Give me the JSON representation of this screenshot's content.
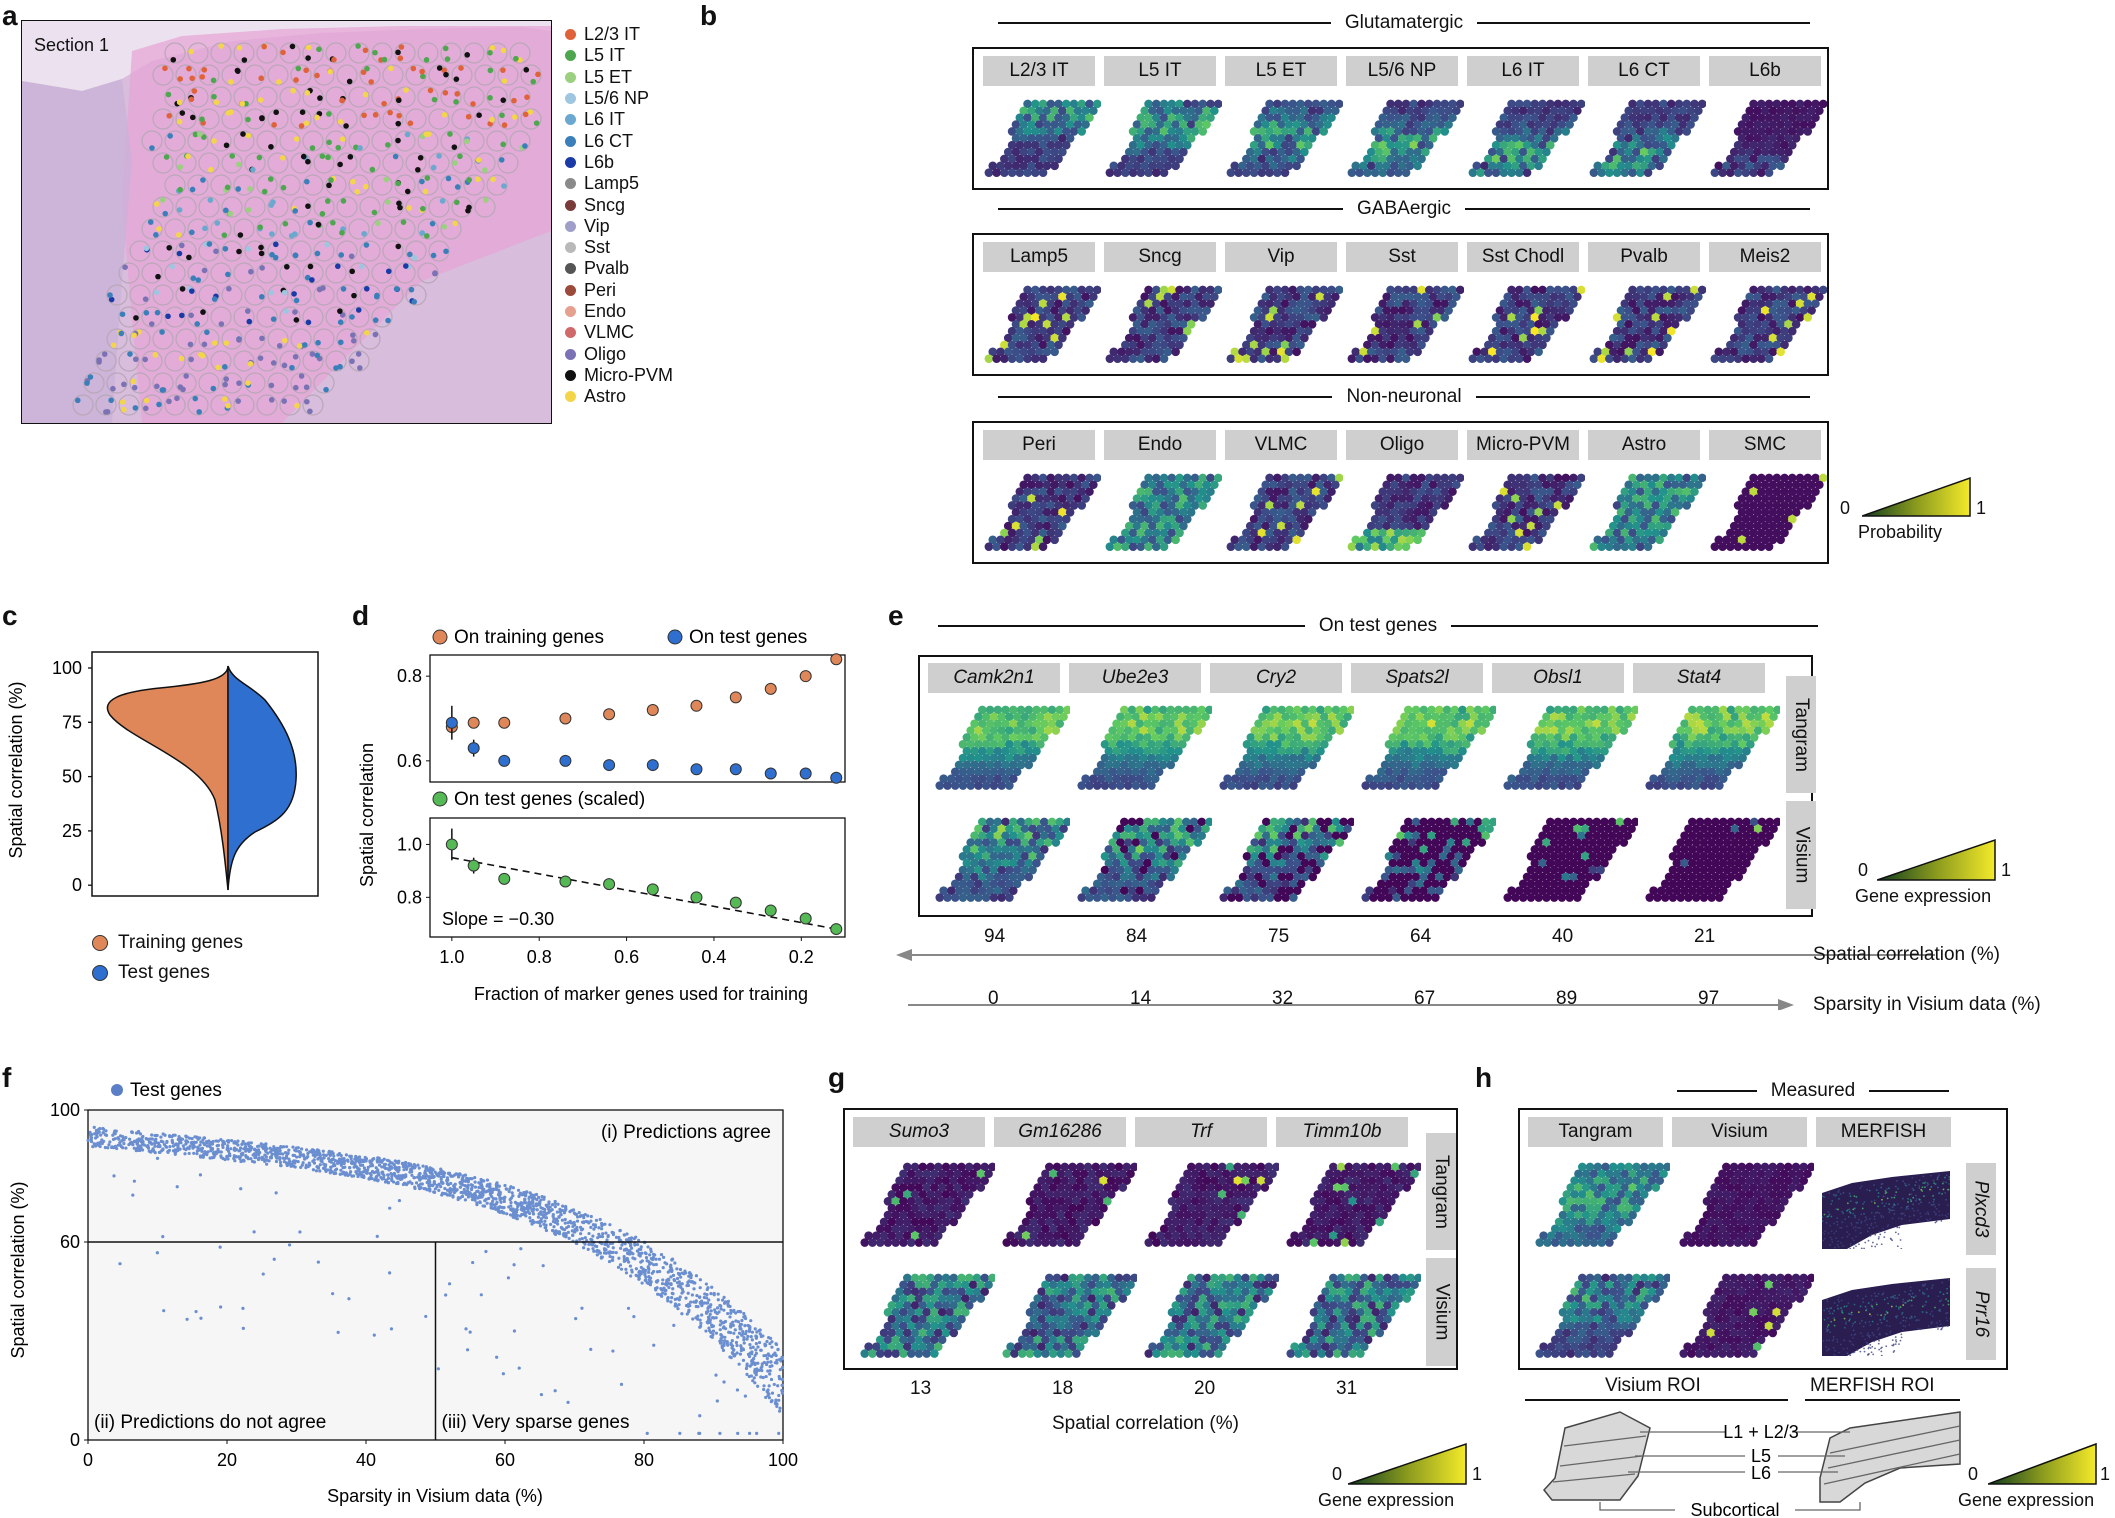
{
  "panels": {
    "a": "a",
    "b": "b",
    "c": "c",
    "d": "d",
    "e": "e",
    "f": "f",
    "g": "g",
    "h": "h"
  },
  "a": {
    "section_label": "Section 1",
    "legend": [
      {
        "label": "L2/3 IT",
        "color": "#e0623a"
      },
      {
        "label": "L5 IT",
        "color": "#4ea64f"
      },
      {
        "label": "L5 ET",
        "color": "#9ad07f"
      },
      {
        "label": "L5/6 NP",
        "color": "#9fc6e0"
      },
      {
        "label": "L6 IT",
        "color": "#6aa8cf"
      },
      {
        "label": "L6 CT",
        "color": "#3b7fba"
      },
      {
        "label": "L6b",
        "color": "#1a3aa8"
      },
      {
        "label": "Lamp5",
        "color": "#8a8a8a"
      },
      {
        "label": "Sncg",
        "color": "#7a3b3b"
      },
      {
        "label": "Vip",
        "color": "#9e9ec8"
      },
      {
        "label": "Sst",
        "color": "#b9b9b9"
      },
      {
        "label": "Pvalb",
        "color": "#555555"
      },
      {
        "label": "Peri",
        "color": "#9b4a3c"
      },
      {
        "label": "Endo",
        "color": "#e6a08f"
      },
      {
        "label": "VLMC",
        "color": "#d06a6a"
      },
      {
        "label": "Oligo",
        "color": "#7a72b5"
      },
      {
        "label": "Micro-PVM",
        "color": "#111111"
      },
      {
        "label": "Astro",
        "color": "#f4d54a"
      }
    ]
  },
  "b": {
    "groups": [
      {
        "title": "Glutamatergic",
        "tabs": [
          "L2/3 IT",
          "L5 IT",
          "L5 ET",
          "L5/6 NP",
          "L6 IT",
          "L6 CT",
          "L6b"
        ]
      },
      {
        "title": "GABAergic",
        "tabs": [
          "Lamp5",
          "Sncg",
          "Vip",
          "Sst",
          "Sst Chodl",
          "Pvalb",
          "Meis2"
        ]
      },
      {
        "title": "Non-neuronal",
        "tabs": [
          "Peri",
          "Endo",
          "VLMC",
          "Oligo",
          "Micro-PVM",
          "Astro",
          "SMC"
        ]
      }
    ],
    "colorbar": {
      "min": "0",
      "max": "1",
      "label": "Probability"
    }
  },
  "c": {
    "ylabel": "Spatial correlation (%)",
    "yticks": [
      "100",
      "75",
      "50",
      "25",
      "0"
    ],
    "legend": [
      {
        "label": "Training genes",
        "color": "#e0875a"
      },
      {
        "label": "Test genes",
        "color": "#2f6fcf"
      }
    ]
  },
  "d": {
    "legend_top": [
      {
        "label": "On training genes",
        "color": "#e0875a"
      },
      {
        "label": "On test genes",
        "color": "#2f6fcf"
      }
    ],
    "legend_bottom": {
      "label": "On test genes (scaled)",
      "color": "#55b956"
    },
    "ylabel": "Spatial correlation",
    "xlabel": "Fraction of marker genes used for training",
    "top_yticks": [
      "0.8",
      "0.6"
    ],
    "bottom_yticks": [
      "1.0",
      "0.8"
    ],
    "xticks": [
      "1.0",
      "0.8",
      "0.6",
      "0.4",
      "0.2"
    ],
    "slope_label": "Slope = −0.30",
    "chart_data": [
      {
        "type": "scatter",
        "title": "",
        "xlabel": "Fraction of marker genes used for training",
        "ylabel": "Spatial correlation",
        "xlim": [
          1.05,
          0.1
        ],
        "ylim": [
          0.55,
          0.85
        ],
        "series": [
          {
            "name": "On training genes",
            "x": [
              1.0,
              0.95,
              0.88,
              0.74,
              0.64,
              0.54,
              0.44,
              0.35,
              0.27,
              0.19,
              0.12
            ],
            "y": [
              0.68,
              0.69,
              0.69,
              0.7,
              0.71,
              0.72,
              0.73,
              0.75,
              0.77,
              0.8,
              0.84
            ]
          },
          {
            "name": "On test genes",
            "x": [
              1.0,
              0.95,
              0.88,
              0.74,
              0.64,
              0.54,
              0.44,
              0.35,
              0.27,
              0.19,
              0.12
            ],
            "y": [
              0.69,
              0.63,
              0.6,
              0.6,
              0.59,
              0.59,
              0.58,
              0.58,
              0.57,
              0.57,
              0.56
            ],
            "err": [
              0.04,
              0.02,
              0.01,
              0,
              0,
              0,
              0,
              0,
              0,
              0,
              0
            ]
          }
        ]
      },
      {
        "type": "scatter",
        "title": "",
        "xlim": [
          1.05,
          0.1
        ],
        "ylim": [
          0.65,
          1.1
        ],
        "series": [
          {
            "name": "On test genes (scaled)",
            "x": [
              1.0,
              0.95,
              0.88,
              0.74,
              0.64,
              0.54,
              0.44,
              0.35,
              0.27,
              0.19,
              0.12
            ],
            "y": [
              1.0,
              0.92,
              0.87,
              0.86,
              0.85,
              0.83,
              0.8,
              0.78,
              0.75,
              0.72,
              0.68
            ],
            "err": [
              0.06,
              0.03,
              0.02,
              0,
              0,
              0,
              0,
              0,
              0,
              0,
              0
            ]
          }
        ],
        "fit": {
          "slope": -0.3
        }
      }
    ]
  },
  "e": {
    "title": "On test genes",
    "tabs": [
      "Camk2n1",
      "Ube2e3",
      "Cry2",
      "Spats2l",
      "Obsl1",
      "Stat4"
    ],
    "row_labels": [
      "Tangram",
      "Visium"
    ],
    "correlations": [
      "94",
      "84",
      "75",
      "64",
      "40",
      "21"
    ],
    "sparsities": [
      "0",
      "14",
      "32",
      "67",
      "89",
      "97"
    ],
    "corr_label": "Spatial correlation (%)",
    "sparsity_label": "Sparsity in Visium data (%)",
    "colorbar": {
      "min": "0",
      "max": "1",
      "label": "Gene expression"
    }
  },
  "f": {
    "legend": "Test genes",
    "ylabel": "Spatial correlation (%)",
    "xlabel": "Sparsity in Visium data (%)",
    "yticks": [
      "100",
      "60",
      "0"
    ],
    "xticks": [
      "0",
      "20",
      "40",
      "60",
      "80",
      "100"
    ],
    "annotations": [
      "(i) Predictions agree",
      "(ii) Predictions do not agree",
      "(iii) Very sparse genes"
    ],
    "chart_data": {
      "type": "scatter",
      "title": "",
      "xlabel": "Sparsity in Visium data (%)",
      "ylabel": "Spatial correlation (%)",
      "xlim": [
        0,
        100
      ],
      "ylim": [
        0,
        100
      ],
      "thresholds": {
        "y": 60,
        "x": 50
      },
      "series": [
        {
          "name": "Test genes",
          "trend": "decreasing from ~92 at 0% sparsity to ~15 at 100% sparsity"
        }
      ]
    }
  },
  "g": {
    "tabs": [
      "Sumo3",
      "Gm16286",
      "Trf",
      "Timm10b"
    ],
    "row_labels": [
      "Tangram",
      "Visium"
    ],
    "correlations": [
      "13",
      "18",
      "20",
      "31"
    ],
    "xlabel": "Spatial correlation (%)",
    "colorbar": {
      "min": "0",
      "max": "1",
      "label": "Gene expression"
    }
  },
  "h": {
    "measured_label": "Measured",
    "tabs": [
      "Tangram",
      "Visium",
      "MERFISH"
    ],
    "row_labels": [
      "Plxcd3",
      "Prr16"
    ],
    "roi_labels": [
      "Visium ROI",
      "MERFISH ROI"
    ],
    "layers": [
      "L1 + L2/3",
      "L5",
      "L6",
      "Subcortical"
    ],
    "colorbar": {
      "min": "0",
      "max": "1",
      "label": "Gene expression"
    }
  }
}
